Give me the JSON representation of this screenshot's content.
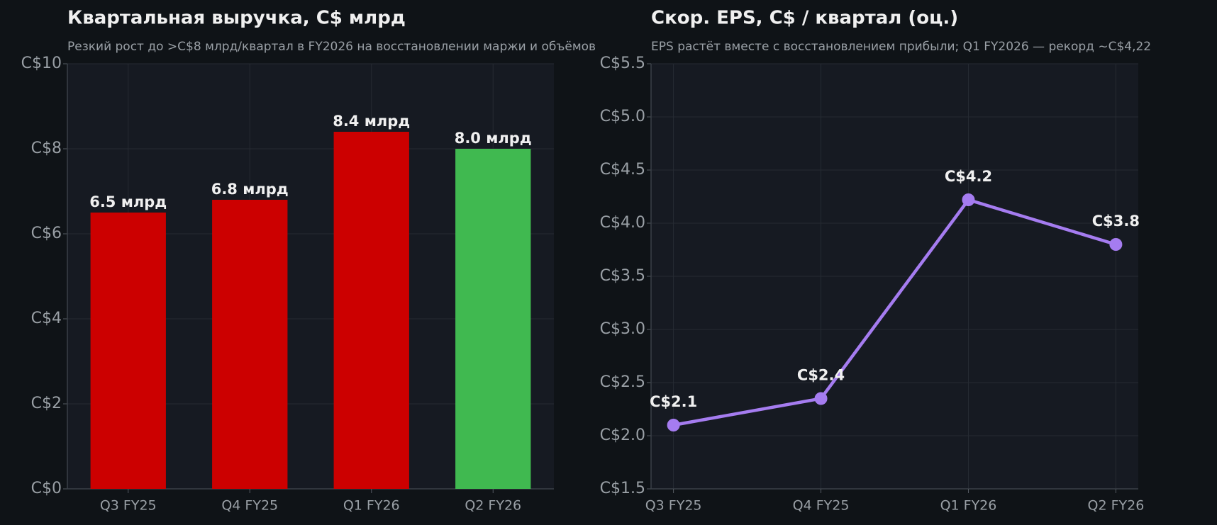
{
  "chart_data": [
    {
      "type": "bar",
      "title": "Квартальная выручка, C$ млрд",
      "subtitle": "Резкий рост до >C$8 млрд/квартал в FY2026 на восстановлении маржи и объёмов",
      "categories": [
        "Q3 FY25",
        "Q4 FY25",
        "Q1 FY26",
        "Q2 FY26"
      ],
      "values": [
        6.5,
        6.8,
        8.4,
        8.0
      ],
      "value_labels": [
        "6.5 млрд",
        "6.8 млрд",
        "8.4 млрд",
        "8.0 млрд"
      ],
      "colors": [
        "#cc0000",
        "#cc0000",
        "#cc0000",
        "#40b950"
      ],
      "ylim": [
        0,
        10
      ],
      "yticks": [
        {
          "value": 0,
          "label": "C$0"
        },
        {
          "value": 2,
          "label": "C$2"
        },
        {
          "value": 4,
          "label": "C$4"
        },
        {
          "value": 6,
          "label": "C$6"
        },
        {
          "value": 8,
          "label": "C$8"
        },
        {
          "value": 10,
          "label": "C$10"
        }
      ],
      "grid": true
    },
    {
      "type": "line",
      "title": "Скор. EPS, C$ / квартал (оц.)",
      "subtitle": "EPS растёт вместе с восстановлением прибыли; Q1 FY2026 — рекорд ~C$4,22",
      "categories": [
        "Q3 FY25",
        "Q4 FY25",
        "Q1 FY26",
        "Q2 FY26"
      ],
      "values": [
        2.1,
        2.35,
        4.22,
        3.8
      ],
      "value_labels": [
        "C$2.1",
        "C$2.4",
        "C$4.2",
        "C$3.8"
      ],
      "color": "#a57cf0",
      "ylim": [
        1.5,
        5.5
      ],
      "yticks": [
        {
          "value": 1.5,
          "label": "C$1.5"
        },
        {
          "value": 2.0,
          "label": "C$2.0"
        },
        {
          "value": 2.5,
          "label": "C$2.5"
        },
        {
          "value": 3.0,
          "label": "C$3.0"
        },
        {
          "value": 3.5,
          "label": "C$3.5"
        },
        {
          "value": 4.0,
          "label": "C$4.0"
        },
        {
          "value": 4.5,
          "label": "C$4.5"
        },
        {
          "value": 5.0,
          "label": "C$5.0"
        },
        {
          "value": 5.5,
          "label": "C$5.5"
        }
      ],
      "grid": true
    }
  ]
}
